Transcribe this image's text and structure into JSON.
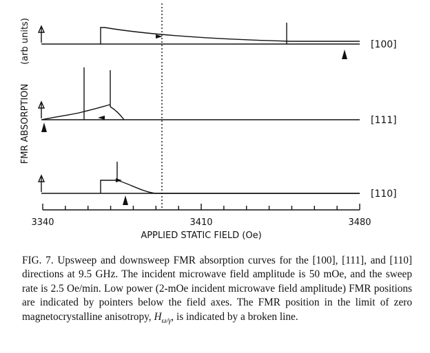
{
  "figure": {
    "y_axis_label": "FMR ABSORPTION",
    "y_axis_units": "(arb units)",
    "x_axis_label": "APPLIED STATIC FIELD (Oe)",
    "x_ticks": [
      "3340",
      "3410",
      "3480"
    ],
    "curves": [
      {
        "direction": "[100]",
        "fmr_pointer_oe": 3474
      },
      {
        "direction": "[111]",
        "fmr_pointer_oe": 3341
      },
      {
        "direction": "[110]",
        "fmr_pointer_oe": 3373
      }
    ],
    "broken_line_oe": 3397
  },
  "caption": {
    "fig_label": "FIG. 7.",
    "body_1": "Upsweep and downsweep FMR absorption curves for the [100], [111], and [110] directions at 9.5 GHz. The incident microwave field amplitude is 50 mOe, and the sweep rate is 2.5 Oe/min. Low power (2-mOe incident microwave field amplitude) FMR positions are indicated by pointers below the field axes. The FMR position in the limit of zero magnetocrystalline anisotropy,",
    "symbol_main": "H",
    "symbol_sub": "ω/γ",
    "body_2": ", is indicated by a broken line."
  }
}
